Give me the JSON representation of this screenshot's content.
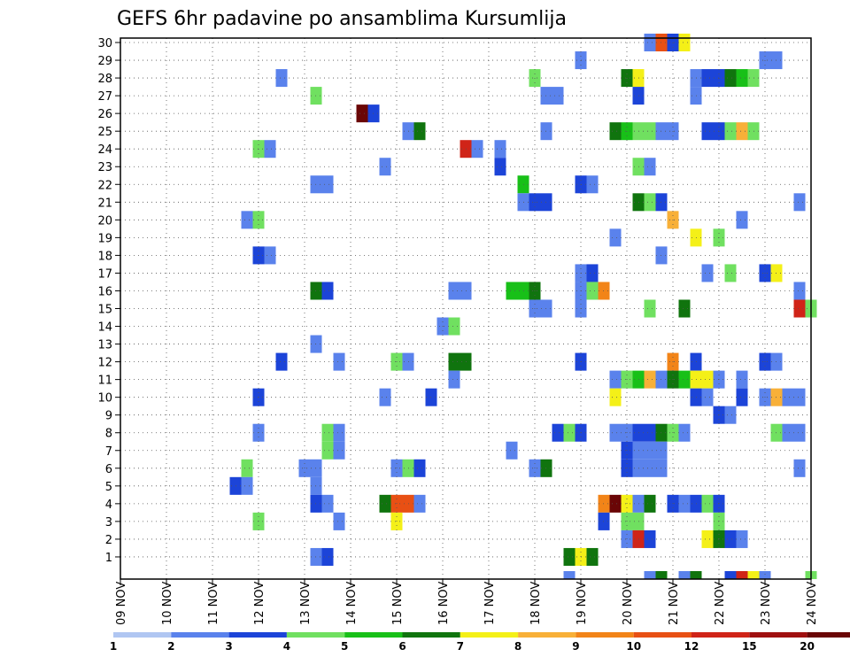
{
  "chart_data": {
    "type": "heatmap",
    "title": "GEFS 6hr padavine po ansamblima Kursumlija",
    "y_ticks": [
      "1",
      "2",
      "3",
      "4",
      "5",
      "6",
      "7",
      "8",
      "9",
      "10",
      "11",
      "12",
      "13",
      "14",
      "15",
      "16",
      "17",
      "18",
      "19",
      "20",
      "21",
      "22",
      "23",
      "24",
      "25",
      "26",
      "27",
      "28",
      "29",
      "30"
    ],
    "x_ticks": [
      "09 NOV",
      "10 NOV",
      "11 NOV",
      "12 NOV",
      "13 NOV",
      "14 NOV",
      "15 NOV",
      "16 NOV",
      "17 NOV",
      "18 NOV",
      "19 NOV",
      "20 NOV",
      "21 NOV",
      "22 NOV",
      "23 NOV",
      "24 NOV"
    ],
    "grid": true,
    "legend_placement": "bottom",
    "legend_labels": [
      "1",
      "2",
      "3",
      "4",
      "5",
      "6",
      "7",
      "8",
      "9",
      "10",
      "12",
      "15",
      "20"
    ],
    "legend_colors": [
      "#b0c6f2",
      "#5a82ec",
      "#1c44d8",
      "#70e060",
      "#18c018",
      "#10740e",
      "#f4f018",
      "#f8b038",
      "#f28418",
      "#e85014",
      "#d02418",
      "#a01010",
      "#6a0606"
    ],
    "x_range_steps": [
      0,
      60
    ],
    "y_range": [
      0,
      30
    ],
    "cells": [
      [
        46,
        30,
        1
      ],
      [
        47,
        30,
        9
      ],
      [
        48,
        30,
        2
      ],
      [
        49,
        30,
        6
      ],
      [
        40,
        29,
        1
      ],
      [
        56,
        29,
        1
      ],
      [
        57,
        29,
        1
      ],
      [
        14,
        28,
        1
      ],
      [
        36,
        28,
        3
      ],
      [
        44,
        28,
        5
      ],
      [
        45,
        28,
        6
      ],
      [
        50,
        28,
        1
      ],
      [
        51,
        28,
        2
      ],
      [
        52,
        28,
        2
      ],
      [
        53,
        28,
        5
      ],
      [
        54,
        28,
        4
      ],
      [
        55,
        28,
        3
      ],
      [
        17,
        27,
        3
      ],
      [
        37,
        27,
        1
      ],
      [
        38,
        27,
        1
      ],
      [
        45,
        27,
        2
      ],
      [
        50,
        27,
        1
      ],
      [
        21,
        26,
        12
      ],
      [
        22,
        26,
        2
      ],
      [
        25,
        25,
        1
      ],
      [
        26,
        25,
        5
      ],
      [
        37,
        25,
        1
      ],
      [
        43,
        25,
        5
      ],
      [
        44,
        25,
        4
      ],
      [
        45,
        25,
        3
      ],
      [
        46,
        25,
        3
      ],
      [
        47,
        25,
        1
      ],
      [
        48,
        25,
        1
      ],
      [
        51,
        25,
        2
      ],
      [
        52,
        25,
        2
      ],
      [
        53,
        25,
        3
      ],
      [
        54,
        25,
        7
      ],
      [
        55,
        25,
        3
      ],
      [
        12,
        24,
        3
      ],
      [
        13,
        24,
        1
      ],
      [
        30,
        24,
        10
      ],
      [
        31,
        24,
        1
      ],
      [
        33,
        24,
        1
      ],
      [
        23,
        23,
        1
      ],
      [
        33,
        23,
        2
      ],
      [
        45,
        23,
        3
      ],
      [
        46,
        23,
        1
      ],
      [
        17,
        22,
        1
      ],
      [
        18,
        22,
        1
      ],
      [
        35,
        22,
        4
      ],
      [
        40,
        22,
        2
      ],
      [
        41,
        22,
        1
      ],
      [
        35,
        21,
        1
      ],
      [
        36,
        21,
        2
      ],
      [
        37,
        21,
        2
      ],
      [
        45,
        21,
        5
      ],
      [
        46,
        21,
        3
      ],
      [
        47,
        21,
        2
      ],
      [
        59,
        21,
        1
      ],
      [
        11,
        20,
        1
      ],
      [
        12,
        20,
        3
      ],
      [
        48,
        20,
        7
      ],
      [
        54,
        20,
        1
      ],
      [
        43,
        19,
        1
      ],
      [
        50,
        19,
        6
      ],
      [
        52,
        19,
        3
      ],
      [
        12,
        18,
        2
      ],
      [
        13,
        18,
        1
      ],
      [
        47,
        18,
        1
      ],
      [
        40,
        17,
        1
      ],
      [
        41,
        17,
        2
      ],
      [
        51,
        17,
        1
      ],
      [
        53,
        17,
        3
      ],
      [
        56,
        17,
        2
      ],
      [
        57,
        17,
        6
      ],
      [
        17,
        16,
        5
      ],
      [
        18,
        16,
        2
      ],
      [
        29,
        16,
        1
      ],
      [
        30,
        16,
        1
      ],
      [
        34,
        16,
        4
      ],
      [
        35,
        16,
        4
      ],
      [
        36,
        16,
        5
      ],
      [
        40,
        16,
        1
      ],
      [
        41,
        16,
        3
      ],
      [
        42,
        16,
        8
      ],
      [
        59,
        16,
        1
      ],
      [
        36,
        15,
        1
      ],
      [
        37,
        15,
        1
      ],
      [
        40,
        15,
        1
      ],
      [
        46,
        15,
        3
      ],
      [
        49,
        15,
        5
      ],
      [
        59,
        15,
        10
      ],
      [
        60,
        15,
        3
      ],
      [
        28,
        14,
        1
      ],
      [
        29,
        14,
        3
      ],
      [
        17,
        13,
        1
      ],
      [
        14,
        12,
        2
      ],
      [
        19,
        12,
        1
      ],
      [
        24,
        12,
        3
      ],
      [
        25,
        12,
        1
      ],
      [
        29,
        12,
        5
      ],
      [
        30,
        12,
        5
      ],
      [
        40,
        12,
        2
      ],
      [
        48,
        12,
        8
      ],
      [
        50,
        12,
        2
      ],
      [
        56,
        12,
        2
      ],
      [
        57,
        12,
        1
      ],
      [
        29,
        11,
        1
      ],
      [
        43,
        11,
        1
      ],
      [
        44,
        11,
        3
      ],
      [
        45,
        11,
        4
      ],
      [
        46,
        11,
        7
      ],
      [
        47,
        11,
        1
      ],
      [
        48,
        11,
        5
      ],
      [
        49,
        11,
        4
      ],
      [
        50,
        11,
        6
      ],
      [
        51,
        11,
        6
      ],
      [
        52,
        11,
        1
      ],
      [
        54,
        11,
        1
      ],
      [
        12,
        10,
        2
      ],
      [
        23,
        10,
        1
      ],
      [
        27,
        10,
        2
      ],
      [
        43,
        10,
        6
      ],
      [
        50,
        10,
        2
      ],
      [
        51,
        10,
        1
      ],
      [
        54,
        10,
        2
      ],
      [
        56,
        10,
        1
      ],
      [
        57,
        10,
        7
      ],
      [
        58,
        10,
        1
      ],
      [
        59,
        10,
        1
      ],
      [
        52,
        9,
        2
      ],
      [
        53,
        9,
        1
      ],
      [
        12,
        8,
        1
      ],
      [
        18,
        8,
        3
      ],
      [
        19,
        8,
        1
      ],
      [
        38,
        8,
        2
      ],
      [
        39,
        8,
        3
      ],
      [
        40,
        8,
        2
      ],
      [
        43,
        8,
        1
      ],
      [
        44,
        8,
        1
      ],
      [
        45,
        8,
        2
      ],
      [
        46,
        8,
        2
      ],
      [
        47,
        8,
        5
      ],
      [
        48,
        8,
        3
      ],
      [
        49,
        8,
        1
      ],
      [
        57,
        8,
        3
      ],
      [
        58,
        8,
        1
      ],
      [
        59,
        8,
        1
      ],
      [
        18,
        7,
        3
      ],
      [
        19,
        7,
        1
      ],
      [
        34,
        7,
        1
      ],
      [
        44,
        7,
        2
      ],
      [
        45,
        7,
        1
      ],
      [
        46,
        7,
        1
      ],
      [
        47,
        7,
        1
      ],
      [
        11,
        6,
        3
      ],
      [
        16,
        6,
        1
      ],
      [
        17,
        6,
        1
      ],
      [
        24,
        6,
        1
      ],
      [
        25,
        6,
        3
      ],
      [
        26,
        6,
        2
      ],
      [
        36,
        6,
        1
      ],
      [
        37,
        6,
        5
      ],
      [
        44,
        6,
        2
      ],
      [
        45,
        6,
        1
      ],
      [
        46,
        6,
        1
      ],
      [
        47,
        6,
        1
      ],
      [
        59,
        6,
        1
      ],
      [
        10,
        5,
        2
      ],
      [
        11,
        5,
        1
      ],
      [
        17,
        5,
        1
      ],
      [
        17,
        4,
        2
      ],
      [
        18,
        4,
        1
      ],
      [
        23,
        4,
        5
      ],
      [
        24,
        4,
        9
      ],
      [
        25,
        4,
        9
      ],
      [
        26,
        4,
        1
      ],
      [
        42,
        4,
        8
      ],
      [
        43,
        4,
        12
      ],
      [
        44,
        4,
        6
      ],
      [
        45,
        4,
        1
      ],
      [
        46,
        4,
        5
      ],
      [
        48,
        4,
        2
      ],
      [
        49,
        4,
        1
      ],
      [
        50,
        4,
        2
      ],
      [
        51,
        4,
        3
      ],
      [
        52,
        4,
        2
      ],
      [
        12,
        3,
        3
      ],
      [
        19,
        3,
        1
      ],
      [
        24,
        3,
        6
      ],
      [
        42,
        3,
        2
      ],
      [
        44,
        3,
        3
      ],
      [
        45,
        3,
        3
      ],
      [
        52,
        3,
        3
      ],
      [
        44,
        2,
        1
      ],
      [
        45,
        2,
        10
      ],
      [
        46,
        2,
        2
      ],
      [
        51,
        2,
        6
      ],
      [
        52,
        2,
        5
      ],
      [
        53,
        2,
        2
      ],
      [
        54,
        2,
        1
      ],
      [
        17,
        1,
        1
      ],
      [
        18,
        1,
        2
      ],
      [
        39,
        1,
        5
      ],
      [
        40,
        1,
        6
      ],
      [
        41,
        1,
        5
      ],
      [
        39,
        0,
        1
      ],
      [
        46,
        0,
        1
      ],
      [
        47,
        0,
        5
      ],
      [
        49,
        0,
        1
      ],
      [
        50,
        0,
        5
      ],
      [
        53,
        0,
        2
      ],
      [
        54,
        0,
        10
      ],
      [
        55,
        0,
        6
      ],
      [
        56,
        0,
        1
      ],
      [
        60,
        0,
        3
      ]
    ]
  }
}
